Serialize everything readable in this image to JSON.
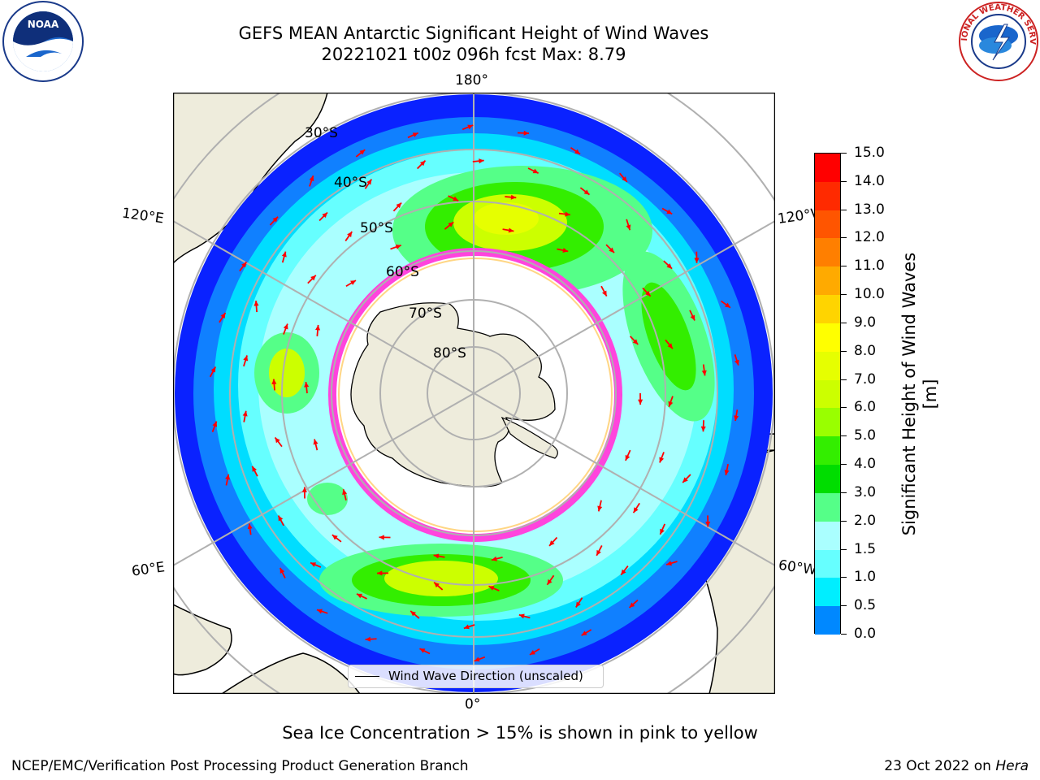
{
  "title_line1": "GEFS MEAN Antarctic Significant Height of Wind Waves",
  "title_line2": "20221021 t00z 096h fcst   Max: 8.79",
  "map": {
    "longitude_labels": {
      "top": "180°",
      "bottom": "0°",
      "left_upper": "120°E",
      "right_upper": "120°W",
      "left_lower": "60°E",
      "right_lower": "60°W"
    },
    "latitude_labels": [
      "30°S",
      "40°S",
      "50°S",
      "60°S",
      "70°S",
      "80°S"
    ],
    "legend": "Wind Wave Direction (unscaled)",
    "colors": {
      "land": "#eeecdc",
      "ocean_background": "#ffffff",
      "grid": "#b0b0b0",
      "arrow": "#ff0000",
      "sea_ice": "#ff44dd"
    }
  },
  "colorbar": {
    "title": "Significant Height of Wind Waves [m]",
    "ticks": [
      "15.0",
      "14.0",
      "13.0",
      "12.0",
      "11.0",
      "10.0",
      "9.0",
      "8.0",
      "7.0",
      "6.0",
      "5.0",
      "4.0",
      "3.0",
      "2.0",
      "1.5",
      "1.0",
      "0.5",
      "0.0"
    ],
    "colors": [
      "#ff0000",
      "#ff2a00",
      "#ff5500",
      "#ff7f00",
      "#ffaa00",
      "#ffd400",
      "#ffff00",
      "#e6ff00",
      "#ccff00",
      "#99ff00",
      "#33ee00",
      "#00dd00",
      "#55ff88",
      "#aaffff",
      "#66ffff",
      "#00eeff",
      "#0088ff",
      "#0000ff"
    ]
  },
  "sea_ice_note": "Sea Ice Concentration > 15% is shown in pink to yellow",
  "footer_left": "NCEP/EMC/Verification Post Processing Product Generation Branch",
  "footer_date": "23 Oct 2022 on",
  "footer_host": "Hera",
  "logos": {
    "left": "NOAA",
    "right": "NATIONAL WEATHER SERVICE"
  }
}
